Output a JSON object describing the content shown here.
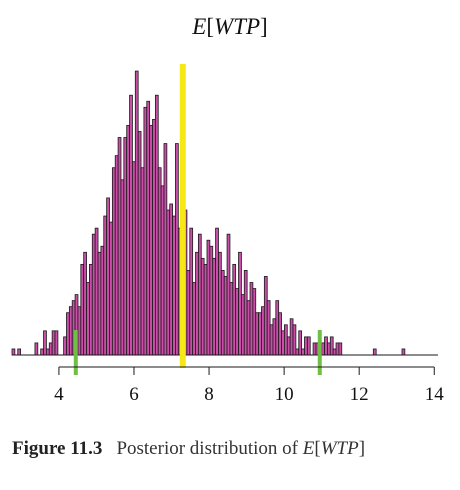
{
  "chart_data": {
    "type": "bar",
    "title_parts": [
      "E",
      "[",
      "WTP",
      "]"
    ],
    "xlabel": "",
    "ylabel": "",
    "xlim": [
      2.75,
      14.1
    ],
    "ylim": [
      0,
      97
    ],
    "xticks": [
      4,
      6,
      8,
      10,
      12,
      14
    ],
    "bin_start": 2.75,
    "bin_width": 0.0764,
    "counts": [
      2,
      0,
      2,
      0,
      0,
      0,
      0,
      0,
      4,
      0,
      2,
      8,
      2,
      4,
      8,
      8,
      0,
      0,
      6,
      14,
      16,
      18,
      20,
      16,
      30,
      34,
      24,
      30,
      40,
      42,
      34,
      36,
      46,
      52,
      44,
      62,
      66,
      72,
      58,
      72,
      76,
      86,
      64,
      94,
      74,
      62,
      82,
      84,
      76,
      78,
      86,
      62,
      56,
      70,
      48,
      50,
      46,
      70,
      42,
      40,
      48,
      28,
      42,
      24,
      34,
      40,
      32,
      30,
      38,
      36,
      32,
      42,
      34,
      28,
      26,
      40,
      24,
      30,
      22,
      34,
      20,
      28,
      18,
      24,
      22,
      14,
      14,
      16,
      26,
      18,
      10,
      12,
      18,
      14,
      8,
      10,
      6,
      12,
      10,
      2,
      8,
      2,
      6,
      6,
      0,
      4,
      4,
      2,
      4,
      6,
      4,
      6,
      2,
      4,
      4,
      0,
      0,
      0,
      0,
      0,
      0,
      0,
      0,
      0,
      0,
      0,
      2,
      0,
      0,
      0,
      0,
      0,
      0,
      0,
      0,
      0,
      2
    ],
    "bar_color": "#c94fa8",
    "mean_line": {
      "x": 7.3,
      "color": "#f5e816"
    },
    "interval_lines": {
      "x": [
        4.45,
        10.95
      ],
      "color": "#6fbf44"
    }
  },
  "caption": {
    "figure_label": "Figure 11.3",
    "text": "Posterior distribution of",
    "italic_part": "E",
    "bracket_open": "[",
    "italic_part_2": "WTP",
    "bracket_close": "]"
  }
}
